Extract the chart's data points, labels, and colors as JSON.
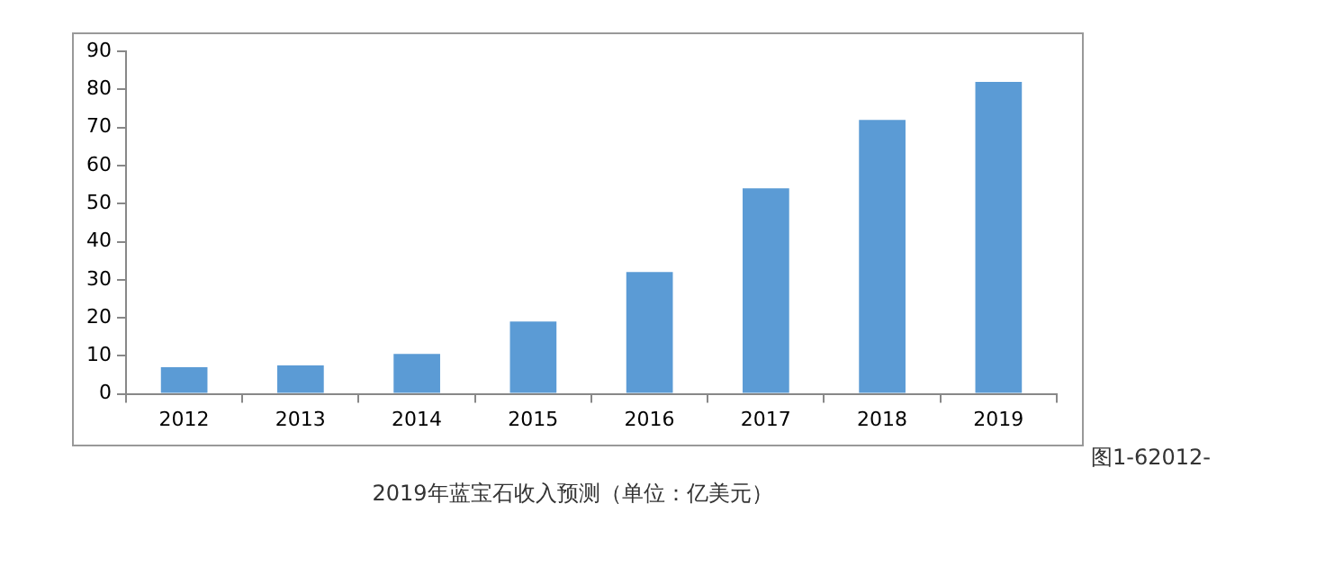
{
  "chart_data": {
    "type": "bar",
    "title": "2019年蓝宝石收入预测（单位：亿美元）",
    "categories": [
      "2012",
      "2013",
      "2014",
      "2015",
      "2016",
      "2017",
      "2018",
      "2019"
    ],
    "values": [
      7,
      7.5,
      10.5,
      19,
      32,
      54,
      72,
      82
    ],
    "color": "#5b9bd5",
    "ylim": [
      0,
      90
    ],
    "yticks": [
      0,
      10,
      20,
      30,
      40,
      50,
      60,
      70,
      80,
      90
    ],
    "grid": false,
    "legend": false,
    "annotations": [
      "图1-62012-"
    ]
  }
}
